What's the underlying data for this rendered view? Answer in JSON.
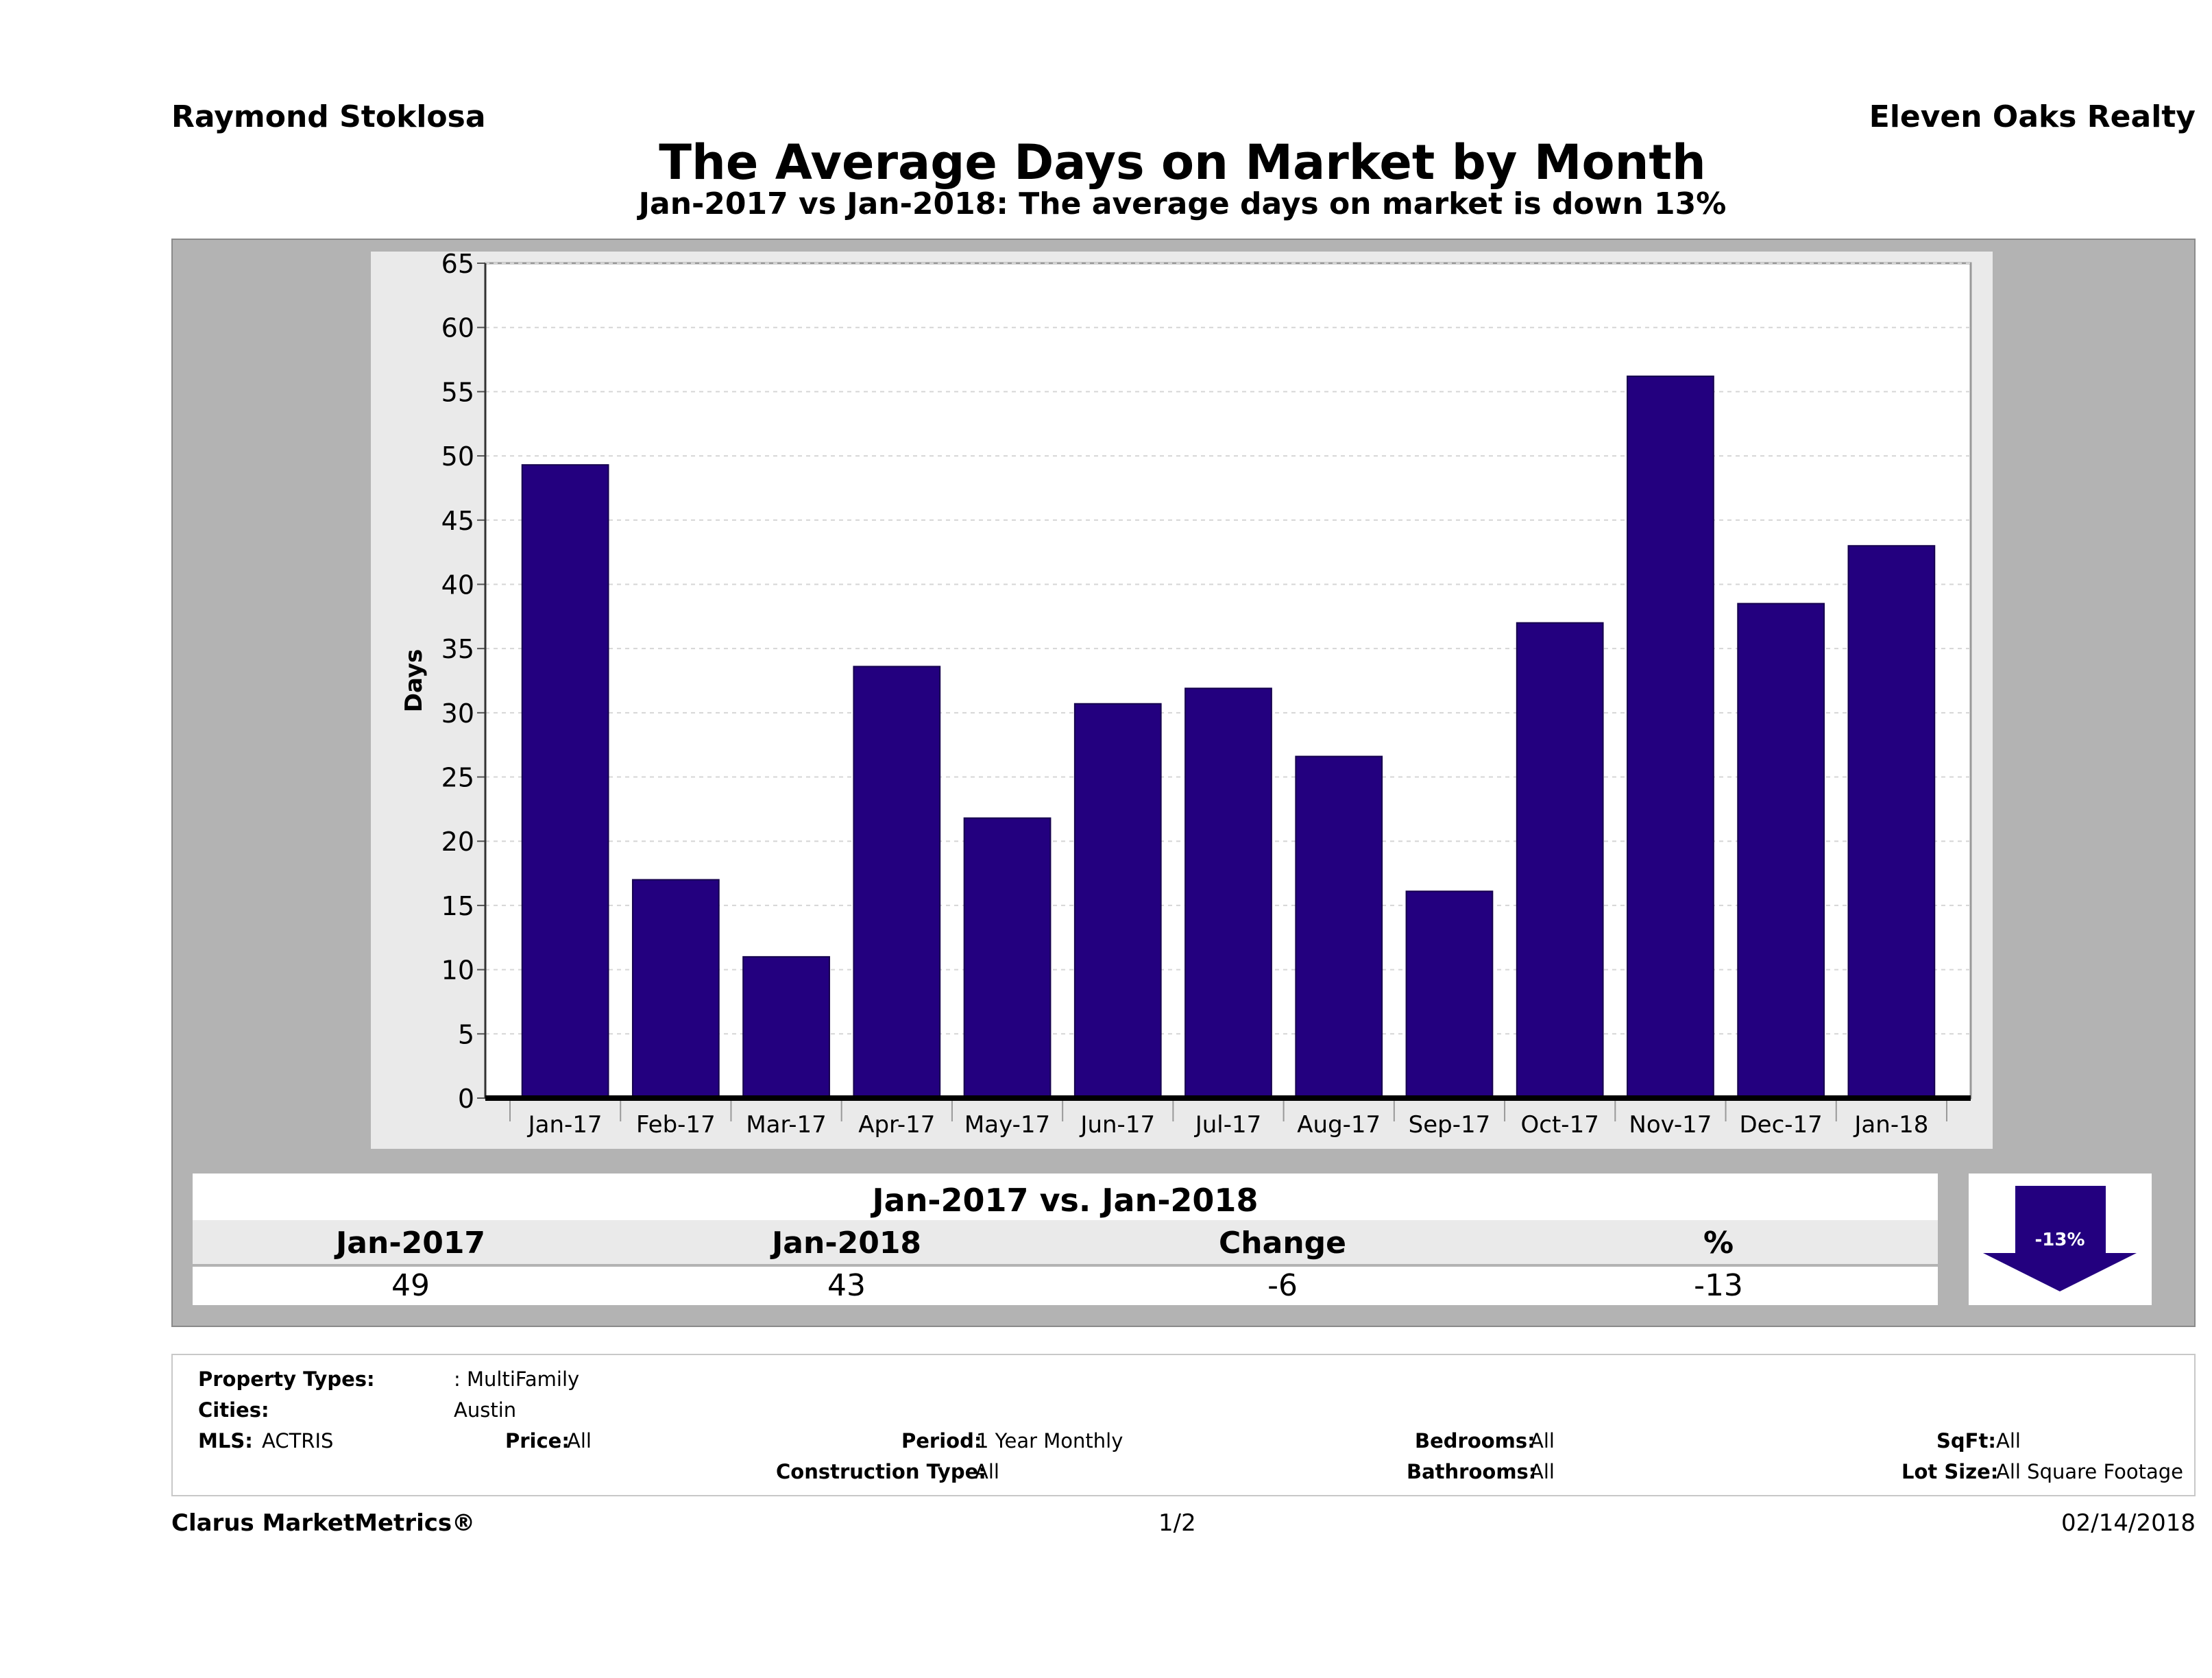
{
  "header": {
    "agent": "Raymond Stoklosa",
    "company": "Eleven Oaks Realty",
    "title": "The Average Days on Market by Month",
    "subtitle": "Jan-2017 vs Jan-2018: The average days on market is down 13%"
  },
  "chart_data": {
    "type": "bar",
    "categories": [
      "Jan-17",
      "Feb-17",
      "Mar-17",
      "Apr-17",
      "May-17",
      "Jun-17",
      "Jul-17",
      "Aug-17",
      "Sep-17",
      "Oct-17",
      "Nov-17",
      "Dec-17",
      "Jan-18"
    ],
    "values": [
      49.3,
      17,
      11,
      33.6,
      21.8,
      30.7,
      31.9,
      26.6,
      16.1,
      37,
      56.2,
      38.5,
      43
    ],
    "ylabel": "Days",
    "xlabel": "",
    "ylim": [
      0,
      65
    ],
    "yticks": [
      0,
      5,
      10,
      15,
      20,
      25,
      30,
      35,
      40,
      45,
      50,
      55,
      60,
      65
    ],
    "bar_color": "#23007f",
    "grid": true
  },
  "summary": {
    "title": "Jan-2017 vs. Jan-2018",
    "headers": [
      "Jan-2017",
      "Jan-2018",
      "Change",
      "%"
    ],
    "values": [
      "49",
      "43",
      "-6",
      "-13"
    ],
    "badge": "-13%",
    "badge_color": "#23007f"
  },
  "criteria": {
    "property_types_label": "Property Types:",
    "property_types_value": ": MultiFamily",
    "cities_label": "Cities:",
    "cities_value": "Austin",
    "mls_label": "MLS:",
    "mls_value": "ACTRIS",
    "price_label": "Price:",
    "price_value": "All",
    "period_label": "Period:",
    "period_value": "1 Year Monthly",
    "construction_label": "Construction Type:",
    "construction_value": "All",
    "bedrooms_label": "Bedrooms:",
    "bedrooms_value": "All",
    "bathrooms_label": "Bathrooms:",
    "bathrooms_value": "All",
    "sqft_label": "SqFt:",
    "sqft_value": "All",
    "lot_size_label": "Lot Size:",
    "lot_size_value": "All Square Footage"
  },
  "footer": {
    "brand": "Clarus MarketMetrics®",
    "page": "1/2",
    "date": "02/14/2018"
  }
}
